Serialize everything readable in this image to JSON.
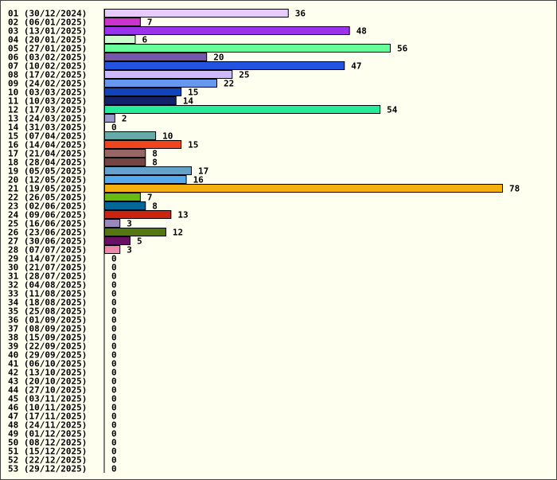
{
  "chart_data": {
    "type": "bar",
    "orientation": "horizontal",
    "title": "",
    "xlabel": "",
    "ylabel": "",
    "xlim": [
      0,
      78
    ],
    "grid": false,
    "legend": "none",
    "background": "#fffff0",
    "bars": [
      {
        "label": "01 (30/12/2024)",
        "value": 36,
        "color": "#e6ccff"
      },
      {
        "label": "02 (06/01/2025)",
        "value": 7,
        "color": "#cc33cc"
      },
      {
        "label": "03 (13/01/2025)",
        "value": 48,
        "color": "#9933ee"
      },
      {
        "label": "04 (20/01/2025)",
        "value": 6,
        "color": "#ccffcc"
      },
      {
        "label": "05 (27/01/2025)",
        "value": 56,
        "color": "#66ff99"
      },
      {
        "label": "06 (03/02/2025)",
        "value": 20,
        "color": "#7755aa"
      },
      {
        "label": "07 (10/02/2025)",
        "value": 47,
        "color": "#2255dd"
      },
      {
        "label": "08 (17/02/2025)",
        "value": 25,
        "color": "#ccbbff"
      },
      {
        "label": "09 (24/02/2025)",
        "value": 22,
        "color": "#6699ee"
      },
      {
        "label": "10 (03/03/2025)",
        "value": 15,
        "color": "#1144bb"
      },
      {
        "label": "11 (10/03/2025)",
        "value": 14,
        "color": "#112266"
      },
      {
        "label": "12 (17/03/2025)",
        "value": 54,
        "color": "#22ee99"
      },
      {
        "label": "13 (24/03/2025)",
        "value": 2,
        "color": "#9999cc"
      },
      {
        "label": "14 (31/03/2025)",
        "value": 0,
        "color": "#ffffff"
      },
      {
        "label": "15 (07/04/2025)",
        "value": 10,
        "color": "#66aaaa"
      },
      {
        "label": "16 (14/04/2025)",
        "value": 15,
        "color": "#ee4422"
      },
      {
        "label": "17 (21/04/2025)",
        "value": 8,
        "color": "#996666"
      },
      {
        "label": "18 (28/04/2025)",
        "value": 8,
        "color": "#774444"
      },
      {
        "label": "19 (05/05/2025)",
        "value": 17,
        "color": "#66a0cc"
      },
      {
        "label": "20 (12/05/2025)",
        "value": 16,
        "color": "#55aaee"
      },
      {
        "label": "21 (19/05/2025)",
        "value": 78,
        "color": "#f5b010"
      },
      {
        "label": "22 (26/05/2025)",
        "value": 7,
        "color": "#66bb11"
      },
      {
        "label": "23 (02/06/2025)",
        "value": 8,
        "color": "#006699"
      },
      {
        "label": "24 (09/06/2025)",
        "value": 13,
        "color": "#cc2211"
      },
      {
        "label": "25 (16/06/2025)",
        "value": 3,
        "color": "#9988bb"
      },
      {
        "label": "26 (23/06/2025)",
        "value": 12,
        "color": "#557711"
      },
      {
        "label": "27 (30/06/2025)",
        "value": 5,
        "color": "#661166"
      },
      {
        "label": "28 (07/07/2025)",
        "value": 3,
        "color": "#ee88aa"
      },
      {
        "label": "29 (14/07/2025)",
        "value": 0,
        "color": "#ffffff"
      },
      {
        "label": "30 (21/07/2025)",
        "value": 0,
        "color": "#ffffff"
      },
      {
        "label": "31 (28/07/2025)",
        "value": 0,
        "color": "#ffffff"
      },
      {
        "label": "32 (04/08/2025)",
        "value": 0,
        "color": "#ffffff"
      },
      {
        "label": "33 (11/08/2025)",
        "value": 0,
        "color": "#ffffff"
      },
      {
        "label": "34 (18/08/2025)",
        "value": 0,
        "color": "#ffffff"
      },
      {
        "label": "35 (25/08/2025)",
        "value": 0,
        "color": "#ffffff"
      },
      {
        "label": "36 (01/09/2025)",
        "value": 0,
        "color": "#ffffff"
      },
      {
        "label": "37 (08/09/2025)",
        "value": 0,
        "color": "#ffffff"
      },
      {
        "label": "38 (15/09/2025)",
        "value": 0,
        "color": "#ffffff"
      },
      {
        "label": "39 (22/09/2025)",
        "value": 0,
        "color": "#ffffff"
      },
      {
        "label": "40 (29/09/2025)",
        "value": 0,
        "color": "#ffffff"
      },
      {
        "label": "41 (06/10/2025)",
        "value": 0,
        "color": "#ffffff"
      },
      {
        "label": "42 (13/10/2025)",
        "value": 0,
        "color": "#ffffff"
      },
      {
        "label": "43 (20/10/2025)",
        "value": 0,
        "color": "#ffffff"
      },
      {
        "label": "44 (27/10/2025)",
        "value": 0,
        "color": "#ffffff"
      },
      {
        "label": "45 (03/11/2025)",
        "value": 0,
        "color": "#ffffff"
      },
      {
        "label": "46 (10/11/2025)",
        "value": 0,
        "color": "#ffffff"
      },
      {
        "label": "47 (17/11/2025)",
        "value": 0,
        "color": "#ffffff"
      },
      {
        "label": "48 (24/11/2025)",
        "value": 0,
        "color": "#ffffff"
      },
      {
        "label": "49 (01/12/2025)",
        "value": 0,
        "color": "#ffffff"
      },
      {
        "label": "50 (08/12/2025)",
        "value": 0,
        "color": "#ffffff"
      },
      {
        "label": "51 (15/12/2025)",
        "value": 0,
        "color": "#ffffff"
      },
      {
        "label": "52 (22/12/2025)",
        "value": 0,
        "color": "#ffffff"
      },
      {
        "label": "53 (29/12/2025)",
        "value": 0,
        "color": "#ffffff"
      }
    ]
  }
}
